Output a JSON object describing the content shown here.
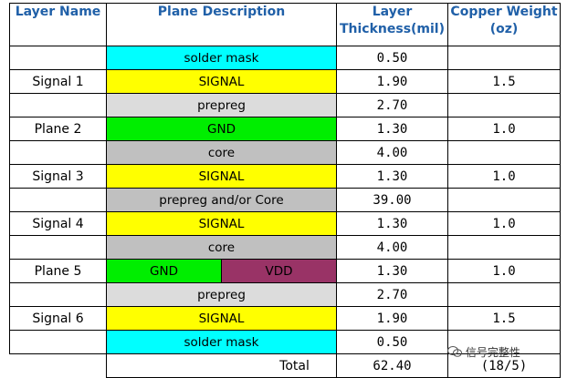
{
  "headers": {
    "layer_name": "Layer Name",
    "plane_description": "Plane Description",
    "layer_thickness_line1": "Layer",
    "layer_thickness_line2": "Thickness(mil)",
    "copper_weight_line1": "Copper Weight",
    "copper_weight_line2": "(oz)"
  },
  "colors": {
    "solder_mask": "#00ffff",
    "signal": "#ffff00",
    "prepreg": "#dcdcdc",
    "gnd": "#00ee00",
    "core": "#c0c0c0",
    "vdd": "#993366",
    "header_text": "#2060a8"
  },
  "rows": [
    {
      "layer": "",
      "plane": "solder mask",
      "thickness": "0.50",
      "copper": ""
    },
    {
      "layer": "Signal 1",
      "plane": "SIGNAL",
      "thickness": "1.90",
      "copper": "1.5"
    },
    {
      "layer": "",
      "plane": "prepreg",
      "thickness": "2.70",
      "copper": ""
    },
    {
      "layer": "Plane 2",
      "plane": "GND",
      "thickness": "1.30",
      "copper": "1.0"
    },
    {
      "layer": "",
      "plane": "core",
      "thickness": "4.00",
      "copper": ""
    },
    {
      "layer": "Signal 3",
      "plane": "SIGNAL",
      "thickness": "1.30",
      "copper": "1.0"
    },
    {
      "layer": "",
      "plane": "prepreg and/or Core",
      "thickness": "39.00",
      "copper": ""
    },
    {
      "layer": "Signal 4",
      "plane": "SIGNAL",
      "thickness": "1.30",
      "copper": "1.0"
    },
    {
      "layer": "",
      "plane": "core",
      "thickness": "4.00",
      "copper": ""
    },
    {
      "layer": "Plane 5",
      "plane_left": "GND",
      "plane_right": "VDD",
      "thickness": "1.30",
      "copper": "1.0"
    },
    {
      "layer": "",
      "plane": "prepreg",
      "thickness": "2.70",
      "copper": ""
    },
    {
      "layer": "Signal 6",
      "plane": "SIGNAL",
      "thickness": "1.90",
      "copper": "1.5"
    },
    {
      "layer": "",
      "plane": "solder mask",
      "thickness": "0.50",
      "copper": ""
    }
  ],
  "total": {
    "label": "Total",
    "thickness": "62.40",
    "copper": "(18/5)"
  },
  "watermark": "信号完整性"
}
